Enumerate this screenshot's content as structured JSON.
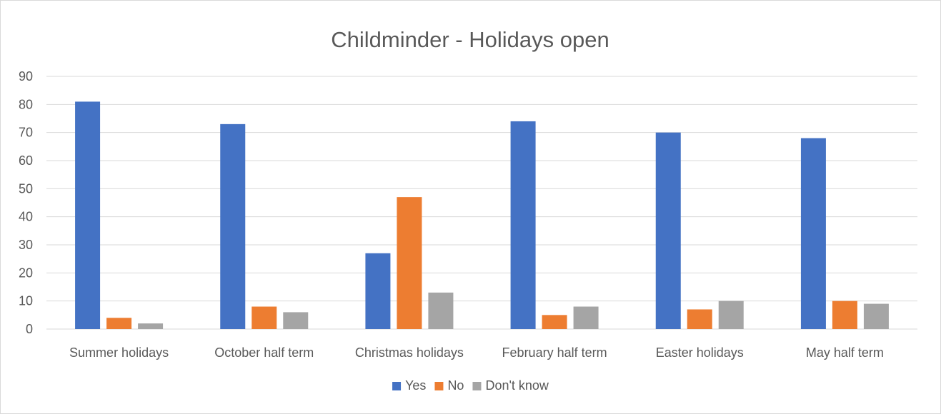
{
  "chart_data": {
    "type": "bar",
    "title": "Childminder - Holidays open",
    "categories": [
      "Summer holidays",
      "October half term",
      "Christmas holidays",
      "February half term",
      "Easter holidays",
      "May half term"
    ],
    "series": [
      {
        "name": "Yes",
        "color": "#4472c4",
        "values": [
          81,
          73,
          27,
          74,
          70,
          68
        ]
      },
      {
        "name": "No",
        "color": "#ed7d31",
        "values": [
          4,
          8,
          47,
          5,
          7,
          10
        ]
      },
      {
        "name": "Don't know",
        "color": "#a5a5a5",
        "values": [
          2,
          6,
          13,
          8,
          10,
          9
        ]
      }
    ],
    "ylim": [
      0,
      90
    ],
    "yticks": [
      0,
      10,
      20,
      30,
      40,
      50,
      60,
      70,
      80,
      90
    ],
    "grid": true,
    "legend_position": "bottom"
  }
}
